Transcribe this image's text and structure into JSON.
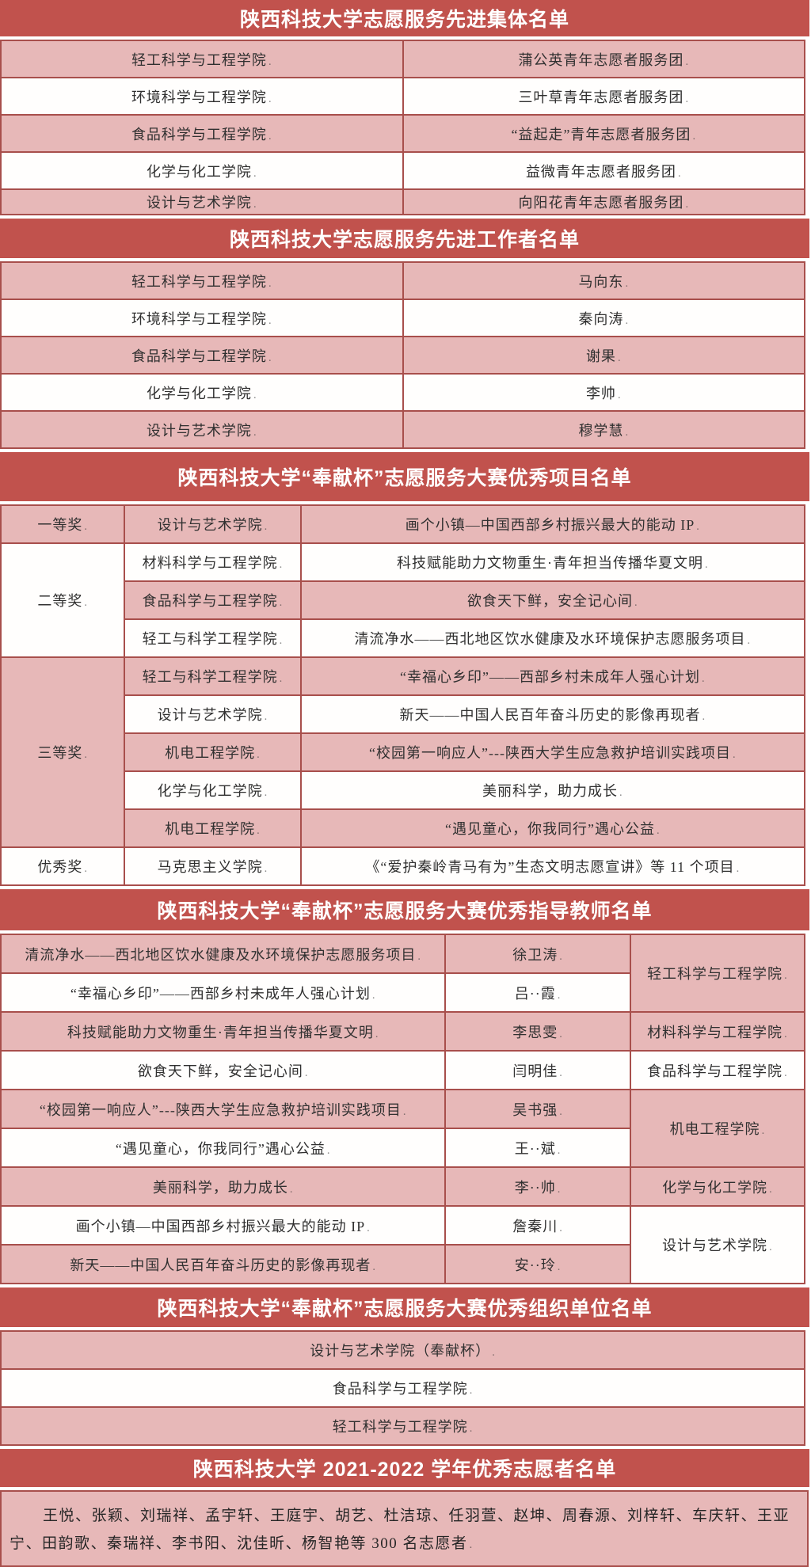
{
  "colors": {
    "band_red": "#c1524d",
    "row_pink": "#e7b8b8",
    "row_white": "#fffefd",
    "border_red": "#a84f4c",
    "band_text": "#ffffff",
    "cell_text": "#303030"
  },
  "bands": {
    "b1": "陕西科技大学志愿服务先进集体名单",
    "b2": "陕西科技大学志愿服务先进工作者名单",
    "b3": "陕西科技大学“奉献杯”志愿服务大赛优秀项目名单",
    "b4": "陕西科技大学“奉献杯”志愿服务大赛优秀指导教师名单",
    "b5": "陕西科技大学“奉献杯”志愿服务大赛优秀组织单位名单",
    "b6": "陕西科技大学 2021-2022 学年优秀志愿者名单"
  },
  "tables": {
    "advanced_collectives": {
      "rows": [
        {
          "bg": "pink",
          "cells": [
            {
              "t": "轻工科学与工程学院"
            },
            {
              "t": "蒲公英青年志愿者服务团"
            }
          ]
        },
        {
          "bg": "white",
          "cells": [
            {
              "t": "环境科学与工程学院"
            },
            {
              "t": "三叶草青年志愿者服务团"
            }
          ]
        },
        {
          "bg": "pink",
          "cells": [
            {
              "t": "食品科学与工程学院"
            },
            {
              "t": "“益起走”青年志愿者服务团"
            }
          ]
        },
        {
          "bg": "white",
          "cells": [
            {
              "t": "化学与化工学院"
            },
            {
              "t": "益微青年志愿者服务团"
            }
          ]
        },
        {
          "bg": "pink",
          "cells": [
            {
              "t": "设计与艺术学院"
            },
            {
              "t": "向阳花青年志愿者服务团"
            }
          ]
        }
      ]
    },
    "advanced_workers": {
      "rows": [
        {
          "bg": "pink",
          "cells": [
            {
              "t": "轻工科学与工程学院"
            },
            {
              "t": "马向东"
            }
          ]
        },
        {
          "bg": "white",
          "cells": [
            {
              "t": "环境科学与工程学院"
            },
            {
              "t": "秦向涛"
            }
          ]
        },
        {
          "bg": "pink",
          "cells": [
            {
              "t": "食品科学与工程学院"
            },
            {
              "t": "谢果"
            }
          ]
        },
        {
          "bg": "white",
          "cells": [
            {
              "t": "化学与化工学院"
            },
            {
              "t": "李帅"
            }
          ]
        },
        {
          "bg": "pink",
          "cells": [
            {
              "t": "设计与艺术学院"
            },
            {
              "t": "穆学慧"
            }
          ]
        }
      ]
    },
    "excellent_projects": {
      "rows": [
        {
          "bg": "pink",
          "cells": [
            {
              "t": "一等奖"
            },
            {
              "t": "设计与艺术学院"
            },
            {
              "t": "画个小镇—中国西部乡村振兴最大的能动 IP"
            }
          ]
        },
        {
          "bg": "white",
          "cells": [
            {
              "t": "二等奖",
              "rs": 3,
              "bg": "white"
            },
            {
              "t": "材料科学与工程学院"
            },
            {
              "t": "科技赋能助力文物重生·青年担当传播华夏文明"
            }
          ]
        },
        {
          "bg": "pink",
          "cells": [
            {
              "t": "食品科学与工程学院"
            },
            {
              "t": "欲食天下鲜，安全记心间"
            }
          ]
        },
        {
          "bg": "white",
          "cells": [
            {
              "t": "轻工与科学工程学院"
            },
            {
              "t": "清流净水——西北地区饮水健康及水环境保护志愿服务项目"
            }
          ]
        },
        {
          "bg": "pink",
          "cells": [
            {
              "t": "三等奖",
              "rs": 5,
              "bg": "pink"
            },
            {
              "t": "轻工与科学工程学院"
            },
            {
              "t": "“幸福心乡印”——西部乡村未成年人强心计划"
            }
          ]
        },
        {
          "bg": "white",
          "cells": [
            {
              "t": "设计与艺术学院"
            },
            {
              "t": "新天——中国人民百年奋斗历史的影像再现者"
            }
          ]
        },
        {
          "bg": "pink",
          "cells": [
            {
              "t": "机电工程学院"
            },
            {
              "t": "“校园第一响应人”---陕西大学生应急救护培训实践项目"
            }
          ]
        },
        {
          "bg": "white",
          "cells": [
            {
              "t": "化学与化工学院"
            },
            {
              "t": "美丽科学，助力成长"
            }
          ]
        },
        {
          "bg": "pink",
          "cells": [
            {
              "t": "机电工程学院"
            },
            {
              "t": "“遇见童心，你我同行”遇心公益"
            }
          ]
        },
        {
          "bg": "white",
          "cells": [
            {
              "t": "优秀奖"
            },
            {
              "t": "马克思主义学院"
            },
            {
              "t": "《“爱护秦岭青马有为”生态文明志愿宣讲》等 11 个项目"
            }
          ]
        }
      ]
    },
    "excellent_advisors": {
      "rows": [
        {
          "bg": "pink",
          "cells": [
            {
              "t": "清流净水——西北地区饮水健康及水环境保护志愿服务项目"
            },
            {
              "t": "徐卫涛"
            },
            {
              "t": "轻工科学与工程学院",
              "rs": 2,
              "bg": "pink"
            }
          ]
        },
        {
          "bg": "white",
          "cells": [
            {
              "t": "“幸福心乡印”——西部乡村未成年人强心计划"
            },
            {
              "t": "吕··霞"
            }
          ]
        },
        {
          "bg": "pink",
          "cells": [
            {
              "t": "科技赋能助力文物重生·青年担当传播华夏文明"
            },
            {
              "t": "李思雯"
            },
            {
              "t": "材料科学与工程学院"
            }
          ]
        },
        {
          "bg": "white",
          "cells": [
            {
              "t": "欲食天下鲜，安全记心间"
            },
            {
              "t": "闫明佳"
            },
            {
              "t": "食品科学与工程学院"
            }
          ]
        },
        {
          "bg": "pink",
          "cells": [
            {
              "t": "“校园第一响应人”---陕西大学生应急救护培训实践项目"
            },
            {
              "t": "吴书强"
            },
            {
              "t": "机电工程学院",
              "rs": 2,
              "bg": "pink"
            }
          ]
        },
        {
          "bg": "white",
          "cells": [
            {
              "t": "“遇见童心，你我同行”遇心公益"
            },
            {
              "t": "王··斌"
            }
          ]
        },
        {
          "bg": "pink",
          "cells": [
            {
              "t": "美丽科学，助力成长"
            },
            {
              "t": "李··帅"
            },
            {
              "t": "化学与化工学院"
            }
          ]
        },
        {
          "bg": "white",
          "cells": [
            {
              "t": "画个小镇—中国西部乡村振兴最大的能动 IP"
            },
            {
              "t": "詹秦川"
            },
            {
              "t": "设计与艺术学院",
              "rs": 2,
              "bg": "white"
            }
          ]
        },
        {
          "bg": "pink",
          "cells": [
            {
              "t": "新天——中国人民百年奋斗历史的影像再现者"
            },
            {
              "t": "安··玲"
            }
          ]
        }
      ]
    },
    "excellent_organizers": {
      "rows": [
        {
          "bg": "pink",
          "cells": [
            {
              "t": "设计与艺术学院（奉献杯）"
            }
          ]
        },
        {
          "bg": "white",
          "cells": [
            {
              "t": "食品科学与工程学院"
            }
          ]
        },
        {
          "bg": "pink",
          "cells": [
            {
              "t": "轻工科学与工程学院"
            }
          ]
        }
      ]
    }
  },
  "volunteers": "王悦、张颖、刘瑞祥、孟宇轩、王庭宇、胡艺、杜洁琼、任羽萱、赵坤、周春源、刘梓轩、车庆轩、王亚宁、田韵歌、秦瑞祥、李书阳、沈佳昕、杨智艳等 300 名志愿者"
}
